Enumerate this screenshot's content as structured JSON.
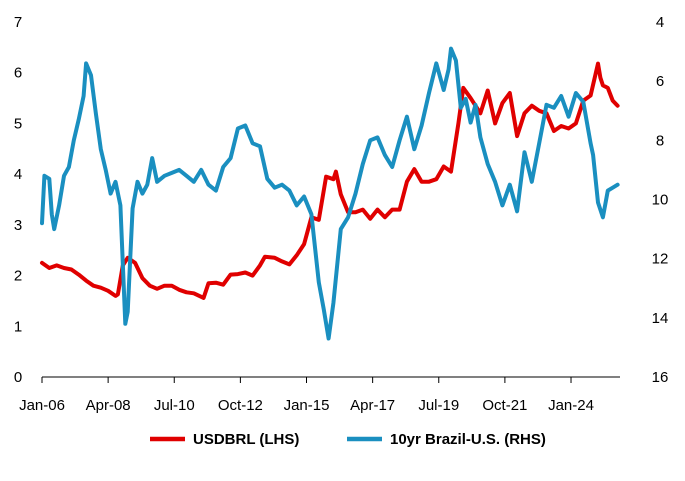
{
  "chart_data": {
    "type": "line",
    "title": "",
    "x_tick_labels": [
      "Jan-06",
      "Apr-08",
      "Jul-10",
      "Oct-12",
      "Jan-15",
      "Apr-17",
      "Jul-19",
      "Oct-21",
      "Jan-24"
    ],
    "x_range": [
      "2006-01",
      "2025-04"
    ],
    "y_left": {
      "range": [
        0,
        7
      ],
      "ticks": [
        "0",
        "1",
        "2",
        "3",
        "4",
        "5",
        "6",
        "7"
      ]
    },
    "y_right": {
      "range": [
        16,
        4
      ],
      "inverted": true,
      "ticks": [
        "4",
        "6",
        "8",
        "10",
        "12",
        "14",
        "16"
      ]
    },
    "grid": false,
    "legend_position": "bottom",
    "series": [
      {
        "name": "USDBRL (LHS)",
        "axis": "left",
        "color": "#e00000",
        "points": [
          [
            "2006-01",
            2.25
          ],
          [
            "2006-04",
            2.15
          ],
          [
            "2006-07",
            2.2
          ],
          [
            "2006-10",
            2.15
          ],
          [
            "2007-01",
            2.12
          ],
          [
            "2007-04",
            2.02
          ],
          [
            "2007-07",
            1.9
          ],
          [
            "2007-10",
            1.8
          ],
          [
            "2008-01",
            1.76
          ],
          [
            "2008-04",
            1.7
          ],
          [
            "2008-07",
            1.6
          ],
          [
            "2008-08",
            1.63
          ],
          [
            "2008-10",
            2.2
          ],
          [
            "2008-12",
            2.35
          ],
          [
            "2009-03",
            2.25
          ],
          [
            "2009-06",
            1.95
          ],
          [
            "2009-09",
            1.8
          ],
          [
            "2009-12",
            1.74
          ],
          [
            "2010-03",
            1.8
          ],
          [
            "2010-06",
            1.8
          ],
          [
            "2010-09",
            1.72
          ],
          [
            "2010-12",
            1.67
          ],
          [
            "2011-03",
            1.65
          ],
          [
            "2011-07",
            1.56
          ],
          [
            "2011-09",
            1.85
          ],
          [
            "2011-12",
            1.86
          ],
          [
            "2012-03",
            1.82
          ],
          [
            "2012-06",
            2.02
          ],
          [
            "2012-09",
            2.03
          ],
          [
            "2012-12",
            2.06
          ],
          [
            "2013-03",
            2.0
          ],
          [
            "2013-06",
            2.2
          ],
          [
            "2013-08",
            2.37
          ],
          [
            "2013-12",
            2.35
          ],
          [
            "2014-03",
            2.28
          ],
          [
            "2014-06",
            2.22
          ],
          [
            "2014-09",
            2.4
          ],
          [
            "2014-12",
            2.62
          ],
          [
            "2015-03",
            3.15
          ],
          [
            "2015-06",
            3.1
          ],
          [
            "2015-09",
            3.95
          ],
          [
            "2015-12",
            3.9
          ],
          [
            "2016-01",
            4.05
          ],
          [
            "2016-03",
            3.6
          ],
          [
            "2016-06",
            3.25
          ],
          [
            "2016-09",
            3.25
          ],
          [
            "2016-12",
            3.3
          ],
          [
            "2017-03",
            3.12
          ],
          [
            "2017-06",
            3.3
          ],
          [
            "2017-09",
            3.15
          ],
          [
            "2017-12",
            3.3
          ],
          [
            "2018-03",
            3.3
          ],
          [
            "2018-06",
            3.85
          ],
          [
            "2018-09",
            4.1
          ],
          [
            "2018-12",
            3.85
          ],
          [
            "2019-03",
            3.85
          ],
          [
            "2019-06",
            3.9
          ],
          [
            "2019-09",
            4.15
          ],
          [
            "2019-12",
            4.05
          ],
          [
            "2020-03",
            5.0
          ],
          [
            "2020-05",
            5.7
          ],
          [
            "2020-08",
            5.5
          ],
          [
            "2020-12",
            5.2
          ],
          [
            "2021-03",
            5.65
          ],
          [
            "2021-06",
            5.0
          ],
          [
            "2021-09",
            5.4
          ],
          [
            "2021-12",
            5.6
          ],
          [
            "2022-03",
            4.75
          ],
          [
            "2022-06",
            5.2
          ],
          [
            "2022-09",
            5.35
          ],
          [
            "2022-12",
            5.25
          ],
          [
            "2023-03",
            5.2
          ],
          [
            "2023-06",
            4.85
          ],
          [
            "2023-09",
            4.95
          ],
          [
            "2023-12",
            4.9
          ],
          [
            "2024-03",
            5.0
          ],
          [
            "2024-06",
            5.45
          ],
          [
            "2024-09",
            5.55
          ],
          [
            "2024-12",
            6.18
          ],
          [
            "2025-01",
            5.9
          ],
          [
            "2025-02",
            5.75
          ],
          [
            "2025-04",
            5.7
          ],
          [
            "2025-06",
            5.45
          ],
          [
            "2025-08",
            5.35
          ]
        ]
      },
      {
        "name": "10yr Brazil-U.S. (RHS)",
        "axis": "right",
        "color": "#1a8fc0",
        "points": [
          [
            "2006-01",
            10.8
          ],
          [
            "2006-02",
            9.2
          ],
          [
            "2006-04",
            9.3
          ],
          [
            "2006-05",
            10.5
          ],
          [
            "2006-06",
            11.0
          ],
          [
            "2006-08",
            10.2
          ],
          [
            "2006-10",
            9.2
          ],
          [
            "2006-12",
            8.9
          ],
          [
            "2007-02",
            8.0
          ],
          [
            "2007-04",
            7.3
          ],
          [
            "2007-06",
            6.5
          ],
          [
            "2007-07",
            5.4
          ],
          [
            "2007-09",
            5.8
          ],
          [
            "2007-11",
            7.1
          ],
          [
            "2008-01",
            8.3
          ],
          [
            "2008-03",
            9.0
          ],
          [
            "2008-05",
            9.8
          ],
          [
            "2008-07",
            9.4
          ],
          [
            "2008-09",
            10.2
          ],
          [
            "2008-11",
            14.2
          ],
          [
            "2008-12",
            13.8
          ],
          [
            "2009-02",
            10.3
          ],
          [
            "2009-04",
            9.4
          ],
          [
            "2009-06",
            9.8
          ],
          [
            "2009-08",
            9.5
          ],
          [
            "2009-10",
            8.6
          ],
          [
            "2009-12",
            9.4
          ],
          [
            "2010-03",
            9.2
          ],
          [
            "2010-06",
            9.1
          ],
          [
            "2010-09",
            9.0
          ],
          [
            "2010-12",
            9.2
          ],
          [
            "2011-03",
            9.4
          ],
          [
            "2011-06",
            9.0
          ],
          [
            "2011-09",
            9.5
          ],
          [
            "2011-12",
            9.7
          ],
          [
            "2012-03",
            8.9
          ],
          [
            "2012-06",
            8.6
          ],
          [
            "2012-09",
            7.6
          ],
          [
            "2012-12",
            7.5
          ],
          [
            "2013-03",
            8.1
          ],
          [
            "2013-06",
            8.2
          ],
          [
            "2013-09",
            9.3
          ],
          [
            "2013-12",
            9.6
          ],
          [
            "2014-03",
            9.5
          ],
          [
            "2014-06",
            9.7
          ],
          [
            "2014-09",
            10.2
          ],
          [
            "2014-12",
            9.9
          ],
          [
            "2015-03",
            10.5
          ],
          [
            "2015-06",
            12.8
          ],
          [
            "2015-08",
            13.7
          ],
          [
            "2015-10",
            14.7
          ],
          [
            "2015-12",
            13.5
          ],
          [
            "2016-03",
            11.0
          ],
          [
            "2016-06",
            10.6
          ],
          [
            "2016-09",
            9.8
          ],
          [
            "2016-12",
            8.8
          ],
          [
            "2017-03",
            8.0
          ],
          [
            "2017-06",
            7.9
          ],
          [
            "2017-09",
            8.5
          ],
          [
            "2017-12",
            8.9
          ],
          [
            "2018-03",
            8.0
          ],
          [
            "2018-06",
            7.2
          ],
          [
            "2018-09",
            8.3
          ],
          [
            "2018-12",
            7.5
          ],
          [
            "2019-03",
            6.4
          ],
          [
            "2019-06",
            5.4
          ],
          [
            "2019-09",
            6.3
          ],
          [
            "2019-11",
            5.6
          ],
          [
            "2019-12",
            4.9
          ],
          [
            "2020-02",
            5.3
          ],
          [
            "2020-04",
            6.9
          ],
          [
            "2020-06",
            6.6
          ],
          [
            "2020-08",
            7.4
          ],
          [
            "2020-10",
            6.8
          ],
          [
            "2020-12",
            7.9
          ],
          [
            "2021-03",
            8.8
          ],
          [
            "2021-06",
            9.4
          ],
          [
            "2021-09",
            10.2
          ],
          [
            "2021-12",
            9.5
          ],
          [
            "2022-03",
            10.4
          ],
          [
            "2022-06",
            8.4
          ],
          [
            "2022-09",
            9.4
          ],
          [
            "2022-12",
            8.1
          ],
          [
            "2023-03",
            6.8
          ],
          [
            "2023-06",
            6.9
          ],
          [
            "2023-09",
            6.5
          ],
          [
            "2023-12",
            7.2
          ],
          [
            "2024-03",
            6.4
          ],
          [
            "2024-06",
            6.7
          ],
          [
            "2024-09",
            8.1
          ],
          [
            "2024-10",
            8.5
          ],
          [
            "2024-12",
            10.1
          ],
          [
            "2025-02",
            10.6
          ],
          [
            "2025-04",
            9.7
          ],
          [
            "2025-06",
            9.6
          ],
          [
            "2025-08",
            9.5
          ]
        ]
      }
    ],
    "legend": [
      "USDBRL (LHS)",
      "10yr Brazil-U.S. (RHS)"
    ]
  }
}
